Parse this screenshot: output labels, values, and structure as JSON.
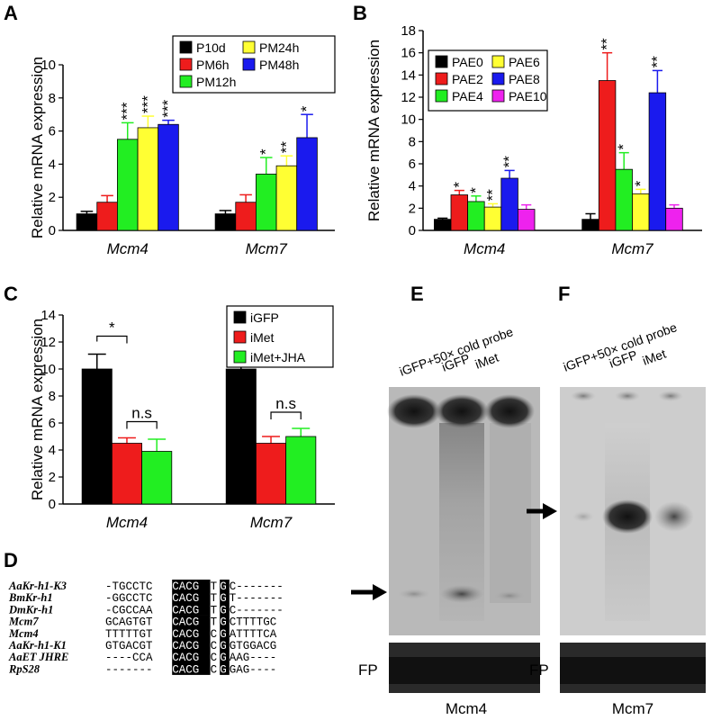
{
  "panels": {
    "A": "A",
    "B": "B",
    "C": "C",
    "D": "D",
    "E": "E",
    "F": "F"
  },
  "colors": {
    "black": "#000000",
    "red": "#ee1c1c",
    "green": "#22ee22",
    "yellow": "#ffff33",
    "blue": "#1a1aee",
    "magenta": "#ee22ee"
  },
  "chart_data": [
    {
      "id": "A",
      "type": "bar",
      "ylabel": "Relative mRNA expression",
      "ylim": [
        0,
        10
      ],
      "yticks": [
        0,
        2,
        4,
        6,
        8,
        10
      ],
      "categories": [
        "Mcm4",
        "Mcm7"
      ],
      "series": [
        {
          "name": "P10d",
          "color": "#000000",
          "values": [
            1.0,
            1.0
          ],
          "errors": [
            0.15,
            0.2
          ],
          "sig": [
            "",
            ""
          ]
        },
        {
          "name": "PM6h",
          "color": "#ee1c1c",
          "values": [
            1.7,
            1.7
          ],
          "errors": [
            0.4,
            0.45
          ],
          "sig": [
            "",
            ""
          ]
        },
        {
          "name": "PM12h",
          "color": "#22ee22",
          "values": [
            5.5,
            3.4
          ],
          "errors": [
            1.0,
            1.0
          ],
          "sig": [
            "***",
            "*"
          ]
        },
        {
          "name": "PM24h",
          "color": "#ffff33",
          "values": [
            6.2,
            3.9
          ],
          "errors": [
            0.7,
            0.6
          ],
          "sig": [
            "***",
            "**"
          ]
        },
        {
          "name": "PM48h",
          "color": "#1a1aee",
          "values": [
            6.4,
            5.6
          ],
          "errors": [
            0.25,
            1.4
          ],
          "sig": [
            "***",
            "*"
          ]
        }
      ],
      "legend_order": [
        "P10d",
        "PM24h",
        "PM6h",
        "PM48h",
        "PM12h"
      ],
      "legend": "top-right"
    },
    {
      "id": "B",
      "type": "bar",
      "ylabel": "Relative mRNA expression",
      "ylim": [
        0,
        18
      ],
      "yticks": [
        0,
        2,
        4,
        6,
        8,
        10,
        12,
        14,
        16,
        18
      ],
      "categories": [
        "Mcm4",
        "Mcm7"
      ],
      "series": [
        {
          "name": "PAE0",
          "color": "#000000",
          "values": [
            1.0,
            1.0
          ],
          "errors": [
            0.1,
            0.5
          ],
          "sig": [
            "",
            ""
          ]
        },
        {
          "name": "PAE2",
          "color": "#ee1c1c",
          "values": [
            3.2,
            13.5
          ],
          "errors": [
            0.4,
            2.5
          ],
          "sig": [
            "*",
            "**"
          ]
        },
        {
          "name": "PAE4",
          "color": "#22ee22",
          "values": [
            2.6,
            5.5
          ],
          "errors": [
            0.5,
            1.5
          ],
          "sig": [
            "*",
            "*"
          ]
        },
        {
          "name": "PAE6",
          "color": "#ffff33",
          "values": [
            2.1,
            3.3
          ],
          "errors": [
            0.3,
            0.4
          ],
          "sig": [
            "**",
            "*"
          ]
        },
        {
          "name": "PAE8",
          "color": "#1a1aee",
          "values": [
            4.7,
            12.4
          ],
          "errors": [
            0.7,
            2.0
          ],
          "sig": [
            "**",
            "**"
          ]
        },
        {
          "name": "PAE10",
          "color": "#ee22ee",
          "values": [
            1.9,
            2.0
          ],
          "errors": [
            0.4,
            0.3
          ],
          "sig": [
            "",
            ""
          ]
        }
      ],
      "legend_order": [
        "PAE0",
        "PAE6",
        "PAE2",
        "PAE8",
        "PAE4",
        "PAE10"
      ],
      "legend": "top-left"
    },
    {
      "id": "C",
      "type": "bar",
      "ylabel": "Relative mRNA expression",
      "ylim": [
        0,
        14
      ],
      "yticks": [
        0,
        2,
        4,
        6,
        8,
        10,
        12,
        14
      ],
      "categories": [
        "Mcm4",
        "Mcm7"
      ],
      "series": [
        {
          "name": "iGFP",
          "color": "#000000",
          "values": [
            10.0,
            10.0
          ],
          "errors": [
            1.1,
            2.1
          ]
        },
        {
          "name": "iMet",
          "color": "#ee1c1c",
          "values": [
            4.5,
            4.5
          ],
          "errors": [
            0.4,
            0.5
          ]
        },
        {
          "name": "iMet+JHA",
          "color": "#22ee22",
          "values": [
            3.9,
            5.0
          ],
          "errors": [
            0.9,
            0.6
          ]
        }
      ],
      "comparisons": [
        "*",
        "n.s",
        "*",
        "n.s"
      ],
      "legend_order": [
        "iGFP",
        "iMet",
        "iMet+JHA"
      ],
      "legend": "top-right"
    }
  ],
  "alignment": {
    "rows": [
      {
        "name": "AaKr-h1-K3",
        "pre": "-TGCCTC",
        "core": "CACG",
        "mid": "T",
        "box2": "G",
        "post": "C-------"
      },
      {
        "name": "BmKr-h1",
        "pre": "-GGCCTC",
        "core": "CACG",
        "mid": "T",
        "box2": "G",
        "post": "T-------"
      },
      {
        "name": "DmKr-h1",
        "pre": "-CGCCAA",
        "core": "CACG",
        "mid": "T",
        "box2": "G",
        "post": "C-------"
      },
      {
        "name": "Mcm7",
        "pre": "GCAGTGT",
        "core": "CACG",
        "mid": "T",
        "box2": "G",
        "post": "CTTTTGC"
      },
      {
        "name": "Mcm4",
        "pre": "TTTTTGT",
        "core": "CACG",
        "mid": "C",
        "box2": "G",
        "post": "ATTTTCA"
      },
      {
        "name": "AaKr-h1-K1",
        "pre": "GTGACGT",
        "core": "CACG",
        "mid": "C",
        "box2": "G",
        "post": "GTGGACG"
      },
      {
        "name": "AaET JHRE",
        "pre": "----CCA",
        "core": "CACG",
        "mid": "C",
        "box2": "G",
        "post": "AAG----"
      },
      {
        "name": "RpS28",
        "pre": "-------",
        "core": "CACG",
        "mid": "C",
        "box2": "G",
        "post": "GAG----"
      }
    ]
  },
  "gels": {
    "E": {
      "lanes": [
        "iGFP+50× cold probe",
        "iGFP",
        "iMet"
      ],
      "fp": "FP",
      "caption": "Mcm4"
    },
    "F": {
      "lanes": [
        "iGFP+50× cold probe",
        "iGFP",
        "iMet"
      ],
      "fp": "FP",
      "caption": "Mcm7"
    }
  }
}
